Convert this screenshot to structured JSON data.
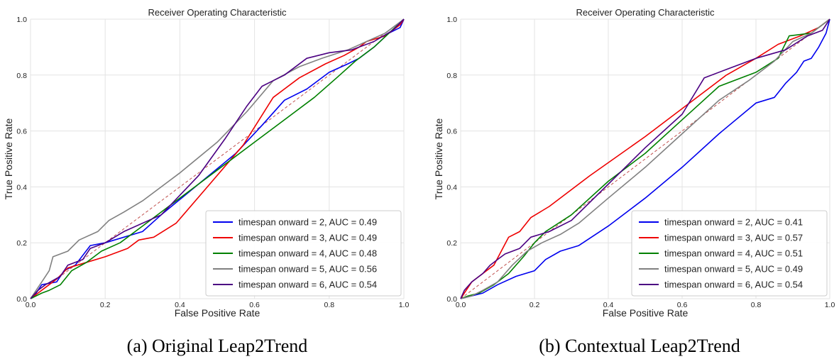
{
  "captions": {
    "a": "(a) Original Leap2Trend",
    "b": "(b) Contextual Leap2Trend"
  },
  "colors": {
    "series": [
      "#0000ee",
      "#ee0000",
      "#008000",
      "#808080",
      "#4b0082"
    ],
    "diagonal": "#c0504d",
    "grid": "#e3e3e3"
  },
  "chart_data": [
    {
      "type": "line",
      "title": "Receiver Operating Characteristic",
      "xlabel": "False Positive Rate",
      "ylabel": "True Positive Rate",
      "xlim": [
        0,
        1
      ],
      "ylim": [
        0,
        1
      ],
      "xticks": [
        "0.0",
        "0.2",
        "0.4",
        "0.6",
        "0.8",
        "1.0"
      ],
      "yticks": [
        "0.0",
        "0.2",
        "0.4",
        "0.6",
        "0.8",
        "1.0"
      ],
      "grid": true,
      "legend_position": "lower-right",
      "diagonal": true,
      "series": [
        {
          "name": "timespan onward = 2, AUC = 0.49",
          "points": [
            [
              0,
              0
            ],
            [
              0.01,
              0.01
            ],
            [
              0.02,
              0.03
            ],
            [
              0.03,
              0.05
            ],
            [
              0.05,
              0.055
            ],
            [
              0.07,
              0.06
            ],
            [
              0.09,
              0.1
            ],
            [
              0.12,
              0.12
            ],
            [
              0.16,
              0.19
            ],
            [
              0.2,
              0.2
            ],
            [
              0.25,
              0.22
            ],
            [
              0.3,
              0.24
            ],
            [
              0.35,
              0.3
            ],
            [
              0.45,
              0.41
            ],
            [
              0.55,
              0.52
            ],
            [
              0.62,
              0.62
            ],
            [
              0.68,
              0.71
            ],
            [
              0.74,
              0.75
            ],
            [
              0.8,
              0.81
            ],
            [
              0.85,
              0.84
            ],
            [
              0.88,
              0.86
            ],
            [
              0.92,
              0.9
            ],
            [
              0.96,
              0.95
            ],
            [
              0.99,
              0.97
            ],
            [
              1,
              1
            ]
          ]
        },
        {
          "name": "timespan onward = 3, AUC = 0.49",
          "points": [
            [
              0,
              0
            ],
            [
              0.02,
              0.02
            ],
            [
              0.04,
              0.04
            ],
            [
              0.07,
              0.07
            ],
            [
              0.1,
              0.11
            ],
            [
              0.15,
              0.13
            ],
            [
              0.2,
              0.15
            ],
            [
              0.26,
              0.18
            ],
            [
              0.29,
              0.21
            ],
            [
              0.33,
              0.22
            ],
            [
              0.39,
              0.27
            ],
            [
              0.48,
              0.41
            ],
            [
              0.57,
              0.55
            ],
            [
              0.65,
              0.72
            ],
            [
              0.72,
              0.79
            ],
            [
              0.79,
              0.84
            ],
            [
              0.84,
              0.87
            ],
            [
              0.88,
              0.9
            ],
            [
              0.9,
              0.92
            ],
            [
              0.95,
              0.94
            ],
            [
              0.99,
              0.98
            ],
            [
              1,
              1
            ]
          ]
        },
        {
          "name": "timespan onward = 4, AUC = 0.48",
          "points": [
            [
              0,
              0
            ],
            [
              0.03,
              0.02
            ],
            [
              0.05,
              0.03
            ],
            [
              0.08,
              0.05
            ],
            [
              0.11,
              0.1
            ],
            [
              0.15,
              0.13
            ],
            [
              0.19,
              0.17
            ],
            [
              0.24,
              0.2
            ],
            [
              0.3,
              0.26
            ],
            [
              0.4,
              0.36
            ],
            [
              0.5,
              0.46
            ],
            [
              0.6,
              0.56
            ],
            [
              0.7,
              0.66
            ],
            [
              0.76,
              0.72
            ],
            [
              0.82,
              0.79
            ],
            [
              0.87,
              0.85
            ],
            [
              0.92,
              0.9
            ],
            [
              0.96,
              0.95
            ],
            [
              1,
              1
            ]
          ]
        },
        {
          "name": "timespan onward = 5, AUC = 0.56",
          "points": [
            [
              0,
              0
            ],
            [
              0.01,
              0.02
            ],
            [
              0.03,
              0.06
            ],
            [
              0.05,
              0.1
            ],
            [
              0.06,
              0.15
            ],
            [
              0.1,
              0.17
            ],
            [
              0.13,
              0.21
            ],
            [
              0.18,
              0.24
            ],
            [
              0.21,
              0.28
            ],
            [
              0.25,
              0.31
            ],
            [
              0.3,
              0.35
            ],
            [
              0.4,
              0.45
            ],
            [
              0.5,
              0.56
            ],
            [
              0.58,
              0.67
            ],
            [
              0.65,
              0.78
            ],
            [
              0.72,
              0.83
            ],
            [
              0.78,
              0.86
            ],
            [
              0.85,
              0.89
            ],
            [
              0.9,
              0.92
            ],
            [
              0.95,
              0.95
            ],
            [
              1,
              1
            ]
          ]
        },
        {
          "name": "timespan onward = 6, AUC = 0.54",
          "points": [
            [
              0,
              0
            ],
            [
              0.02,
              0.03
            ],
            [
              0.04,
              0.05
            ],
            [
              0.08,
              0.08
            ],
            [
              0.1,
              0.12
            ],
            [
              0.14,
              0.14
            ],
            [
              0.16,
              0.18
            ],
            [
              0.2,
              0.2
            ],
            [
              0.25,
              0.24
            ],
            [
              0.35,
              0.3
            ],
            [
              0.45,
              0.44
            ],
            [
              0.52,
              0.57
            ],
            [
              0.58,
              0.69
            ],
            [
              0.62,
              0.76
            ],
            [
              0.68,
              0.8
            ],
            [
              0.74,
              0.86
            ],
            [
              0.8,
              0.88
            ],
            [
              0.86,
              0.89
            ],
            [
              0.92,
              0.92
            ],
            [
              0.97,
              0.96
            ],
            [
              1,
              1
            ]
          ]
        }
      ]
    },
    {
      "type": "line",
      "title": "Receiver Operating Characteristic",
      "xlabel": "False Positive Rate",
      "ylabel": "True Positive Rate",
      "xlim": [
        0,
        1
      ],
      "ylim": [
        0,
        1
      ],
      "xticks": [
        "0.0",
        "0.2",
        "0.4",
        "0.6",
        "0.8",
        "1.0"
      ],
      "yticks": [
        "0.0",
        "0.2",
        "0.4",
        "0.6",
        "0.8",
        "1.0"
      ],
      "grid": true,
      "legend_position": "lower-right",
      "diagonal": true,
      "series": [
        {
          "name": "timespan onward = 2, AUC = 0.41",
          "points": [
            [
              0,
              0
            ],
            [
              0.03,
              0.01
            ],
            [
              0.06,
              0.02
            ],
            [
              0.1,
              0.05
            ],
            [
              0.15,
              0.08
            ],
            [
              0.2,
              0.1
            ],
            [
              0.23,
              0.14
            ],
            [
              0.27,
              0.17
            ],
            [
              0.32,
              0.19
            ],
            [
              0.4,
              0.26
            ],
            [
              0.5,
              0.36
            ],
            [
              0.6,
              0.47
            ],
            [
              0.7,
              0.59
            ],
            [
              0.8,
              0.7
            ],
            [
              0.85,
              0.72
            ],
            [
              0.88,
              0.77
            ],
            [
              0.91,
              0.81
            ],
            [
              0.93,
              0.85
            ],
            [
              0.95,
              0.86
            ],
            [
              0.97,
              0.9
            ],
            [
              0.99,
              0.95
            ],
            [
              1,
              1
            ]
          ]
        },
        {
          "name": "timespan onward = 3, AUC = 0.57",
          "points": [
            [
              0,
              0
            ],
            [
              0.01,
              0.02
            ],
            [
              0.03,
              0.06
            ],
            [
              0.06,
              0.09
            ],
            [
              0.09,
              0.12
            ],
            [
              0.11,
              0.17
            ],
            [
              0.13,
              0.22
            ],
            [
              0.16,
              0.24
            ],
            [
              0.19,
              0.29
            ],
            [
              0.24,
              0.33
            ],
            [
              0.35,
              0.44
            ],
            [
              0.5,
              0.58
            ],
            [
              0.65,
              0.73
            ],
            [
              0.72,
              0.8
            ],
            [
              0.8,
              0.86
            ],
            [
              0.86,
              0.91
            ],
            [
              0.92,
              0.94
            ],
            [
              0.97,
              0.97
            ],
            [
              1,
              1
            ]
          ]
        },
        {
          "name": "timespan onward = 4, AUC = 0.51",
          "points": [
            [
              0,
              0
            ],
            [
              0.02,
              0.01
            ],
            [
              0.05,
              0.02
            ],
            [
              0.09,
              0.05
            ],
            [
              0.13,
              0.09
            ],
            [
              0.17,
              0.15
            ],
            [
              0.2,
              0.2
            ],
            [
              0.23,
              0.24
            ],
            [
              0.3,
              0.3
            ],
            [
              0.4,
              0.42
            ],
            [
              0.5,
              0.52
            ],
            [
              0.6,
              0.64
            ],
            [
              0.7,
              0.76
            ],
            [
              0.8,
              0.81
            ],
            [
              0.86,
              0.86
            ],
            [
              0.89,
              0.94
            ],
            [
              0.95,
              0.95
            ],
            [
              1,
              1
            ]
          ]
        },
        {
          "name": "timespan onward = 5, AUC = 0.49",
          "points": [
            [
              0,
              0
            ],
            [
              0.03,
              0.01
            ],
            [
              0.06,
              0.03
            ],
            [
              0.1,
              0.06
            ],
            [
              0.14,
              0.12
            ],
            [
              0.18,
              0.17
            ],
            [
              0.22,
              0.2
            ],
            [
              0.27,
              0.23
            ],
            [
              0.32,
              0.27
            ],
            [
              0.4,
              0.36
            ],
            [
              0.5,
              0.47
            ],
            [
              0.6,
              0.59
            ],
            [
              0.7,
              0.71
            ],
            [
              0.78,
              0.78
            ],
            [
              0.85,
              0.85
            ],
            [
              0.9,
              0.92
            ],
            [
              0.95,
              0.95
            ],
            [
              1,
              1
            ]
          ]
        },
        {
          "name": "timespan onward = 6, AUC = 0.54",
          "points": [
            [
              0,
              0
            ],
            [
              0.01,
              0.03
            ],
            [
              0.03,
              0.06
            ],
            [
              0.06,
              0.09
            ],
            [
              0.08,
              0.12
            ],
            [
              0.1,
              0.14
            ],
            [
              0.12,
              0.16
            ],
            [
              0.16,
              0.18
            ],
            [
              0.19,
              0.22
            ],
            [
              0.24,
              0.24
            ],
            [
              0.3,
              0.28
            ],
            [
              0.4,
              0.41
            ],
            [
              0.5,
              0.54
            ],
            [
              0.6,
              0.66
            ],
            [
              0.66,
              0.79
            ],
            [
              0.72,
              0.82
            ],
            [
              0.8,
              0.86
            ],
            [
              0.88,
              0.89
            ],
            [
              0.94,
              0.94
            ],
            [
              0.98,
              0.96
            ],
            [
              1,
              1
            ]
          ]
        }
      ]
    }
  ]
}
